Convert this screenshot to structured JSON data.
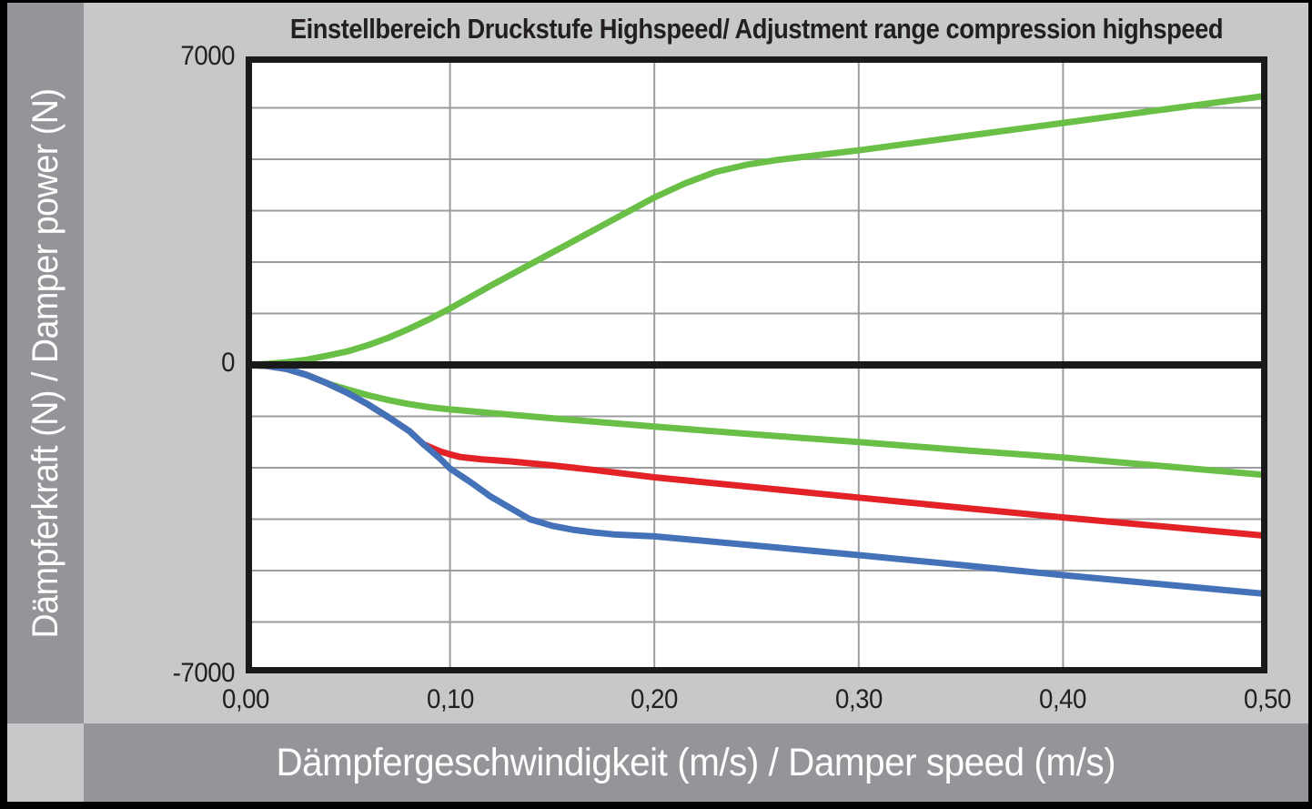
{
  "page": {
    "title": "Einstellbereich Druckstufe Highspeed/ Adjustment range compression highspeed",
    "y_axis_label": "Dämpferkraft (N) / Damper power (N)",
    "x_axis_label": "Dämpfergeschwindigkeit (m/s) / Damper speed (m/s)"
  },
  "colors": {
    "background_light_gray": "#c7c8ca",
    "strip_dark_gray": "#939598",
    "plot_background": "#ffffff",
    "gridline_gray": "#9b9c9e",
    "axis_black": "#1a1a1a",
    "text_dark": "#231f20",
    "text_white": "#ffffff",
    "series_green": "#6abf47",
    "series_red": "#e32227",
    "series_blue": "#4472b8"
  },
  "chart_data": {
    "type": "line",
    "title": "Einstellbereich Druckstufe Highspeed/ Adjustment range compression highspeed",
    "xlabel": "Dämpfergeschwindigkeit (m/s) / Damper speed (m/s)",
    "ylabel": "Dämpferkraft (N) / Damper power (N)",
    "xlim": [
      0,
      0.5
    ],
    "ylim": [
      -7000,
      7000
    ],
    "x_ticks": [
      "0,00",
      "0,10",
      "0,20",
      "0,30",
      "0,40",
      "0,50"
    ],
    "y_ticks": [
      "7000",
      "0",
      "-7000"
    ],
    "grid": true,
    "x_grid_step": 0.1,
    "y_divisions": 12,
    "legend": "none",
    "series": [
      {
        "name": "compression-highspeed-max-green-upper",
        "color": "#6abf47",
        "points": [
          [
            0,
            0
          ],
          [
            0.01,
            20
          ],
          [
            0.02,
            60
          ],
          [
            0.03,
            120
          ],
          [
            0.04,
            210
          ],
          [
            0.05,
            310
          ],
          [
            0.06,
            450
          ],
          [
            0.07,
            620
          ],
          [
            0.08,
            820
          ],
          [
            0.09,
            1040
          ],
          [
            0.1,
            1280
          ],
          [
            0.12,
            1800
          ],
          [
            0.14,
            2300
          ],
          [
            0.16,
            2800
          ],
          [
            0.18,
            3300
          ],
          [
            0.2,
            3800
          ],
          [
            0.215,
            4120
          ],
          [
            0.23,
            4380
          ],
          [
            0.245,
            4540
          ],
          [
            0.26,
            4650
          ],
          [
            0.28,
            4760
          ],
          [
            0.3,
            4870
          ],
          [
            0.35,
            5180
          ],
          [
            0.4,
            5490
          ],
          [
            0.45,
            5800
          ],
          [
            0.5,
            6110
          ]
        ]
      },
      {
        "name": "rebound-green-lower",
        "color": "#6abf47",
        "points": [
          [
            0,
            0
          ],
          [
            0.01,
            -20
          ],
          [
            0.02,
            -90
          ],
          [
            0.03,
            -230
          ],
          [
            0.04,
            -420
          ],
          [
            0.05,
            -560
          ],
          [
            0.06,
            -690
          ],
          [
            0.07,
            -800
          ],
          [
            0.08,
            -890
          ],
          [
            0.09,
            -960
          ],
          [
            0.1,
            -1010
          ],
          [
            0.12,
            -1090
          ],
          [
            0.15,
            -1210
          ],
          [
            0.2,
            -1400
          ],
          [
            0.25,
            -1580
          ],
          [
            0.3,
            -1750
          ],
          [
            0.35,
            -1930
          ],
          [
            0.4,
            -2100
          ],
          [
            0.45,
            -2300
          ],
          [
            0.5,
            -2500
          ]
        ]
      },
      {
        "name": "rebound-red-middle",
        "color": "#e32227",
        "points": [
          [
            0,
            0
          ],
          [
            0.01,
            -20
          ],
          [
            0.02,
            -90
          ],
          [
            0.03,
            -230
          ],
          [
            0.04,
            -420
          ],
          [
            0.05,
            -640
          ],
          [
            0.06,
            -900
          ],
          [
            0.07,
            -1190
          ],
          [
            0.08,
            -1500
          ],
          [
            0.087,
            -1800
          ],
          [
            0.095,
            -1960
          ],
          [
            0.1,
            -2030
          ],
          [
            0.105,
            -2090
          ],
          [
            0.115,
            -2140
          ],
          [
            0.13,
            -2190
          ],
          [
            0.15,
            -2280
          ],
          [
            0.17,
            -2380
          ],
          [
            0.2,
            -2550
          ],
          [
            0.25,
            -2780
          ],
          [
            0.3,
            -3010
          ],
          [
            0.35,
            -3240
          ],
          [
            0.4,
            -3460
          ],
          [
            0.45,
            -3670
          ],
          [
            0.5,
            -3880
          ]
        ]
      },
      {
        "name": "rebound-blue-lowest",
        "color": "#4472b8",
        "points": [
          [
            0,
            0
          ],
          [
            0.01,
            -20
          ],
          [
            0.02,
            -90
          ],
          [
            0.03,
            -230
          ],
          [
            0.04,
            -420
          ],
          [
            0.05,
            -640
          ],
          [
            0.06,
            -900
          ],
          [
            0.07,
            -1190
          ],
          [
            0.08,
            -1500
          ],
          [
            0.087,
            -1800
          ],
          [
            0.095,
            -2120
          ],
          [
            0.1,
            -2350
          ],
          [
            0.11,
            -2660
          ],
          [
            0.12,
            -2990
          ],
          [
            0.13,
            -3260
          ],
          [
            0.139,
            -3500
          ],
          [
            0.15,
            -3650
          ],
          [
            0.16,
            -3740
          ],
          [
            0.17,
            -3800
          ],
          [
            0.18,
            -3845
          ],
          [
            0.2,
            -3890
          ],
          [
            0.25,
            -4100
          ],
          [
            0.3,
            -4315
          ],
          [
            0.35,
            -4540
          ],
          [
            0.4,
            -4770
          ],
          [
            0.45,
            -4985
          ],
          [
            0.5,
            -5200
          ]
        ]
      }
    ]
  }
}
